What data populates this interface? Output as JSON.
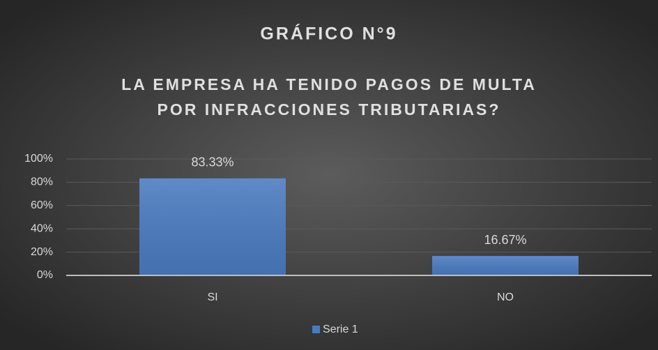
{
  "chart_data": {
    "type": "bar",
    "title": "GRÁFICO N°9",
    "subtitle_lines": [
      "LA EMPRESA HA TENIDO PAGOS DE MULTA",
      "POR INFRACCIONES TRIBUTARIAS?"
    ],
    "categories": [
      "SI",
      "NO"
    ],
    "series": [
      {
        "name": "Serie 1",
        "color": "#4a7ac0",
        "values": [
          83.33,
          16.67
        ],
        "value_labels": [
          "83.33%",
          "16.67%"
        ]
      }
    ],
    "ylim": [
      0,
      100
    ],
    "yticks": [
      {
        "value": 0,
        "label": "0%"
      },
      {
        "value": 20,
        "label": "20%"
      },
      {
        "value": 40,
        "label": "40%"
      },
      {
        "value": 60,
        "label": "60%"
      },
      {
        "value": 80,
        "label": "80%"
      },
      {
        "value": 100,
        "label": "100%"
      }
    ],
    "grid": true,
    "legend": "bottom"
  }
}
